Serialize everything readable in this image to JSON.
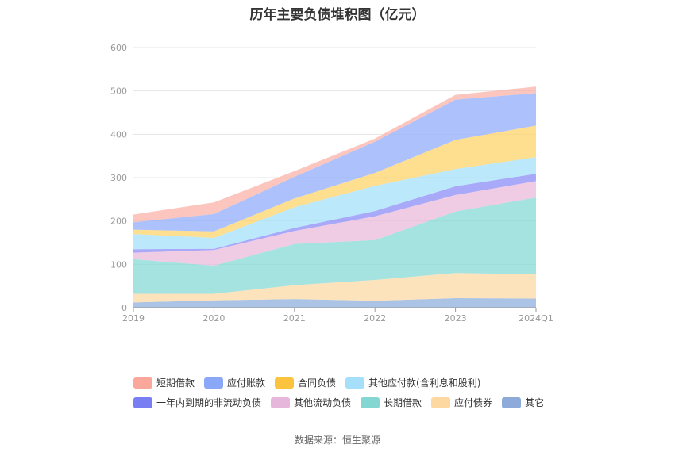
{
  "title": "历年主要负债堆积图（亿元）",
  "source": "数据来源：恒生聚源",
  "chart_data": {
    "type": "area",
    "stacked": true,
    "title": "历年主要负债堆积图（亿元）",
    "x": [
      "2019",
      "2020",
      "2021",
      "2022",
      "2023",
      "2024Q1"
    ],
    "ylim": [
      0,
      600
    ],
    "yticks": [
      0,
      100,
      200,
      300,
      400,
      500,
      600
    ],
    "grid": true,
    "legend_position": "bottom",
    "series": [
      {
        "name": "其它",
        "color": "#8fb0dc",
        "values": [
          12,
          17,
          20,
          16,
          22,
          21
        ]
      },
      {
        "name": "应付债券",
        "color": "#fcd9a5",
        "values": [
          20,
          15,
          32,
          48,
          58,
          56
        ]
      },
      {
        "name": "长期借款",
        "color": "#86d9d6",
        "values": [
          80,
          65,
          95,
          92,
          142,
          177
        ]
      },
      {
        "name": "其他流动负债",
        "color": "#ebbbdb",
        "values": [
          15,
          36,
          30,
          55,
          38,
          38
        ]
      },
      {
        "name": "一年内到期的非流动负债",
        "color": "#8b8cf5",
        "values": [
          8,
          3,
          7,
          12,
          20,
          17
        ]
      },
      {
        "name": "其他应付款(含利息和股利)",
        "color": "#a5e0fb",
        "values": [
          35,
          25,
          48,
          58,
          40,
          38
        ]
      },
      {
        "name": "合同负债",
        "color": "#fdd36a",
        "values": [
          10,
          15,
          20,
          30,
          67,
          73
        ]
      },
      {
        "name": "应付账款",
        "color": "#91aefc",
        "values": [
          17,
          40,
          50,
          72,
          93,
          75
        ]
      },
      {
        "name": "短期借款",
        "color": "#fbb3aa",
        "values": [
          18,
          27,
          13,
          7,
          11,
          15
        ]
      }
    ]
  },
  "legend": {
    "row1": [
      {
        "label": "短期借款",
        "color": "#fba79b"
      },
      {
        "label": "应付账款",
        "color": "#8aa7f8"
      },
      {
        "label": "合同负债",
        "color": "#fcc43e"
      },
      {
        "label": "其他应付款(含利息和股利)",
        "color": "#a6dffa"
      }
    ],
    "row2": [
      {
        "label": "一年内到期的非流动负债",
        "color": "#7a7ef3"
      },
      {
        "label": "其他流动负债",
        "color": "#e6b7da"
      },
      {
        "label": "长期借款",
        "color": "#84d6d3"
      },
      {
        "label": "应付债券",
        "color": "#fdd8a0"
      },
      {
        "label": "其它",
        "color": "#8eaad8"
      }
    ]
  }
}
